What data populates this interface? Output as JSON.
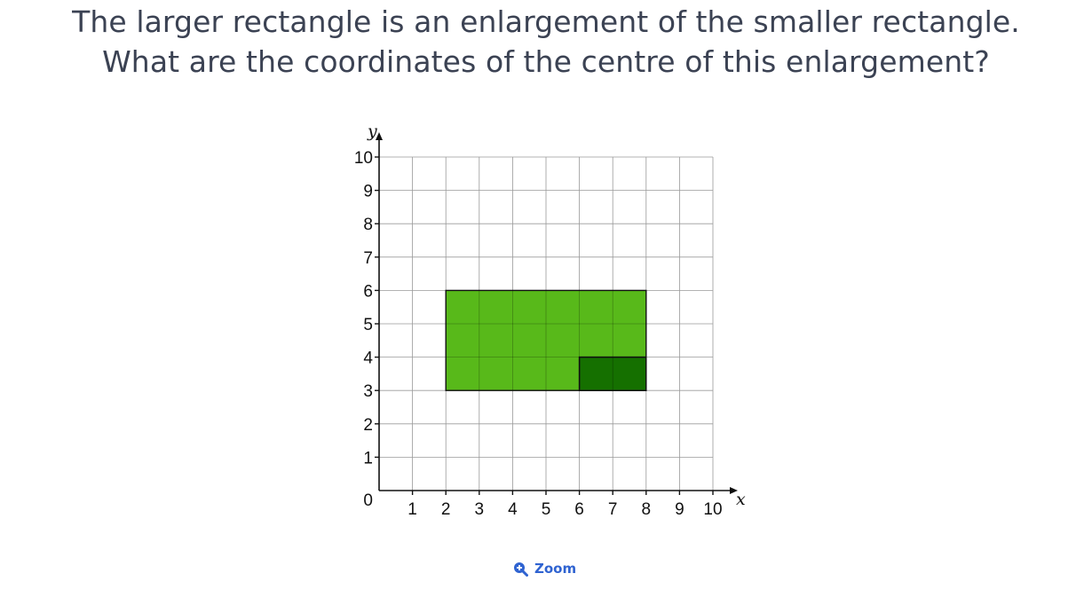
{
  "question": {
    "line1": "The larger rectangle is an enlargement of the smaller rectangle.",
    "line2": "What are the coordinates of the centre of this enlargement?"
  },
  "diagram": {
    "x_axis_label": "x",
    "y_axis_label": "y",
    "origin_label": "0",
    "x_ticks": [
      "1",
      "2",
      "3",
      "4",
      "5",
      "6",
      "7",
      "8",
      "9",
      "10"
    ],
    "y_ticks": [
      "1",
      "2",
      "3",
      "4",
      "5",
      "6",
      "7",
      "8",
      "9",
      "10"
    ],
    "x_range": [
      0,
      10
    ],
    "y_range": [
      0,
      10
    ],
    "grid": true,
    "large_rectangle": {
      "x1": 2,
      "y1": 3,
      "x2": 8,
      "y2": 6,
      "color": "#58b91a"
    },
    "small_rectangle": {
      "x1": 6,
      "y1": 3,
      "x2": 8,
      "y2": 4,
      "color": "#157000"
    }
  },
  "zoom": {
    "label": "Zoom",
    "icon": "zoom-in-icon",
    "color": "#2f63d1"
  }
}
